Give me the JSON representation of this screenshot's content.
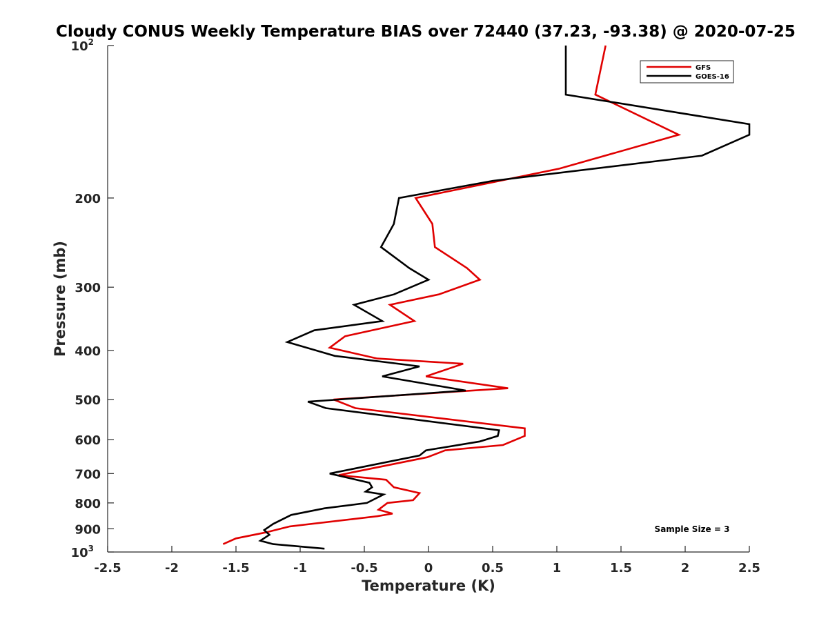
{
  "chart_data": {
    "type": "line",
    "title": "Cloudy CONUS Weekly Temperature BIAS over 72440 (37.23, -93.38) @ 2020-07-25",
    "xlabel": "Temperature (K)",
    "ylabel": "Pressure (mb)",
    "xlim": [
      -2.5,
      2.5
    ],
    "ylim": [
      100,
      1000
    ],
    "y_scale": "log",
    "y_reversed": true,
    "grid": false,
    "x_ticks": [
      "-2.5",
      "-2",
      "-1.5",
      "-1",
      "-0.5",
      "0",
      "0.5",
      "1",
      "1.5",
      "2",
      "2.5"
    ],
    "x_tick_values": [
      -2.5,
      -2,
      -1.5,
      -1,
      -0.5,
      0,
      0.5,
      1,
      1.5,
      2,
      2.5
    ],
    "y_ticks": [
      {
        "value": 100,
        "base": "10",
        "exp": "2"
      },
      {
        "value": 200,
        "label": "200"
      },
      {
        "value": 300,
        "label": "300"
      },
      {
        "value": 400,
        "label": "400"
      },
      {
        "value": 500,
        "label": "500"
      },
      {
        "value": 600,
        "label": "600"
      },
      {
        "value": 700,
        "label": "700"
      },
      {
        "value": 800,
        "label": "800"
      },
      {
        "value": 900,
        "label": "900"
      },
      {
        "value": 1000,
        "base": "10",
        "exp": "3"
      }
    ],
    "legend_position": "top-right",
    "annotation": "Sample Size = 3",
    "series": [
      {
        "name": "GFS",
        "color": "#e00000",
        "points": [
          [
            1.38,
            100
          ],
          [
            1.3,
            125
          ],
          [
            1.95,
            150
          ],
          [
            1.02,
            175
          ],
          [
            -0.1,
            200
          ],
          [
            0.03,
            225
          ],
          [
            0.05,
            250
          ],
          [
            0.3,
            275
          ],
          [
            0.4,
            290
          ],
          [
            0.08,
            310
          ],
          [
            -0.3,
            325
          ],
          [
            -0.11,
            350
          ],
          [
            -0.65,
            375
          ],
          [
            -0.77,
            395
          ],
          [
            -0.4,
            415
          ],
          [
            0.27,
            425
          ],
          [
            -0.02,
            450
          ],
          [
            0.62,
            475
          ],
          [
            -0.74,
            500
          ],
          [
            -0.57,
            520
          ],
          [
            0.75,
            570
          ],
          [
            0.75,
            590
          ],
          [
            0.58,
            615
          ],
          [
            0.13,
            630
          ],
          [
            -0.01,
            650
          ],
          [
            -0.7,
            705
          ],
          [
            -0.33,
            720
          ],
          [
            -0.27,
            745
          ],
          [
            -0.07,
            765
          ],
          [
            -0.12,
            790
          ],
          [
            -0.32,
            800
          ],
          [
            -0.39,
            825
          ],
          [
            -0.28,
            840
          ],
          [
            -0.4,
            850
          ],
          [
            -1.08,
            890
          ],
          [
            -1.27,
            915
          ],
          [
            -1.5,
            940
          ],
          [
            -1.6,
            965
          ]
        ]
      },
      {
        "name": "GOES-16",
        "color": "#000000",
        "points": [
          [
            1.07,
            100
          ],
          [
            1.07,
            125
          ],
          [
            2.5,
            143
          ],
          [
            2.5,
            150
          ],
          [
            2.13,
            165
          ],
          [
            0.5,
            185
          ],
          [
            -0.23,
            200
          ],
          [
            -0.27,
            225
          ],
          [
            -0.37,
            250
          ],
          [
            -0.15,
            275
          ],
          [
            0.0,
            290
          ],
          [
            -0.27,
            310
          ],
          [
            -0.58,
            325
          ],
          [
            -0.36,
            350
          ],
          [
            -0.89,
            365
          ],
          [
            -1.1,
            385
          ],
          [
            -0.73,
            410
          ],
          [
            -0.07,
            430
          ],
          [
            -0.36,
            450
          ],
          [
            0.29,
            480
          ],
          [
            -0.94,
            505
          ],
          [
            -0.8,
            520
          ],
          [
            0.55,
            575
          ],
          [
            0.54,
            590
          ],
          [
            0.4,
            605
          ],
          [
            -0.02,
            630
          ],
          [
            -0.07,
            645
          ],
          [
            -0.77,
            700
          ],
          [
            -0.46,
            730
          ],
          [
            -0.44,
            745
          ],
          [
            -0.49,
            760
          ],
          [
            -0.35,
            770
          ],
          [
            -0.48,
            800
          ],
          [
            -0.81,
            820
          ],
          [
            -1.07,
            845
          ],
          [
            -1.21,
            880
          ],
          [
            -1.28,
            905
          ],
          [
            -1.24,
            925
          ],
          [
            -1.31,
            950
          ],
          [
            -1.21,
            965
          ],
          [
            -0.81,
            985
          ]
        ]
      }
    ]
  }
}
